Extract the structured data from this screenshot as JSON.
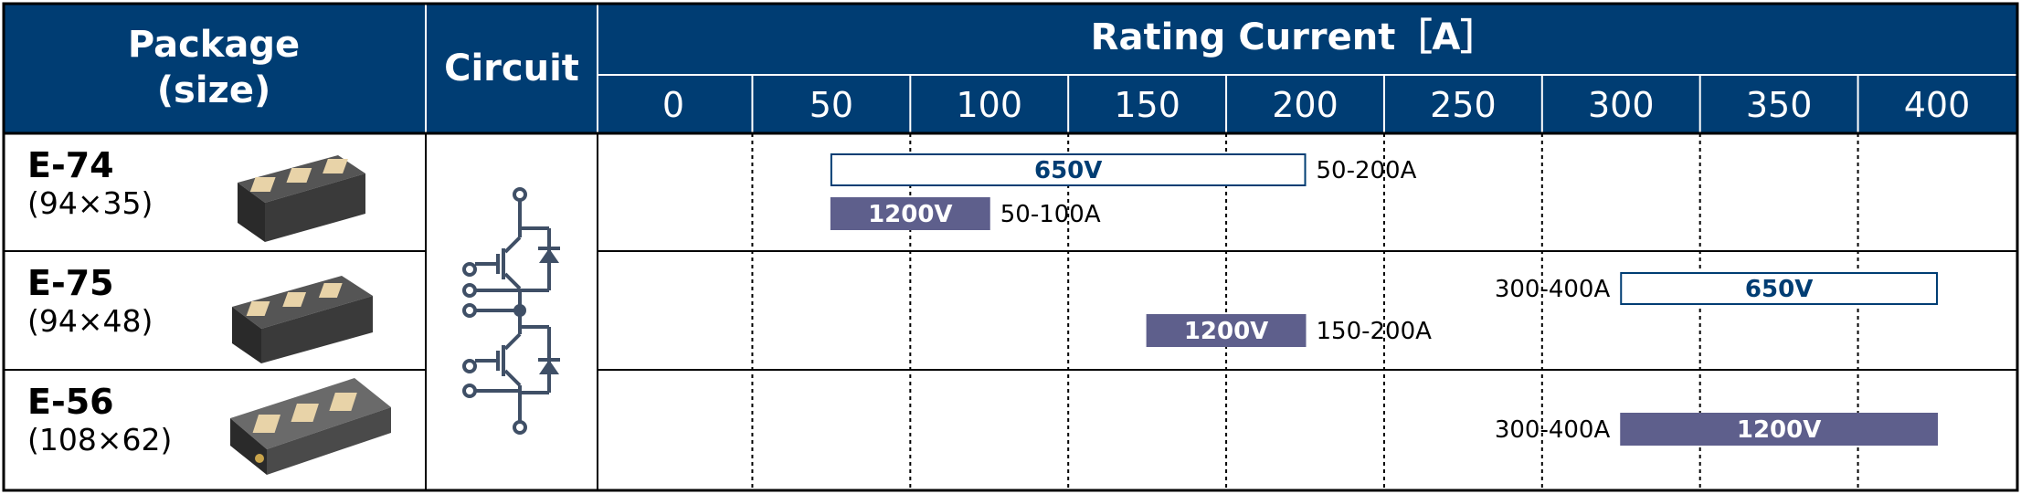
{
  "colors": {
    "header_bg": "#003d73",
    "bar_650v_fill": "#ffffff",
    "bar_650v_border": "#003d73",
    "bar_650v_text": "#003d73",
    "bar_1200v_fill": "#5e5f8c",
    "bar_1200v_text": "#ffffff",
    "circuit_color": "#3f4f66"
  },
  "chart_data": {
    "type": "bar",
    "orientation": "horizontal",
    "title": "Rating Current [A]",
    "header": {
      "package_label": "Package",
      "package_sub": "(size)",
      "circuit_label": "Circuit",
      "axis_title": "Rating Current［A］"
    },
    "xlim": [
      0,
      400
    ],
    "ticks": [
      "0",
      "50",
      "100",
      "150",
      "200",
      "250",
      "300",
      "350",
      "400"
    ],
    "grid": "vertical-dashed",
    "rows": [
      {
        "package": "E-74",
        "size": "(94×35)",
        "picture": "module-e74-icon",
        "bars": [
          {
            "voltage": "650V",
            "start": 50,
            "end": 200,
            "range_label": "50-200A",
            "label_side": "right",
            "style": "outline"
          },
          {
            "voltage": "1200V",
            "start": 50,
            "end": 100,
            "range_label": "50-100A",
            "label_side": "right",
            "style": "filled"
          }
        ]
      },
      {
        "package": "E-75",
        "size": "(94×48)",
        "picture": "module-e75-icon",
        "bars": [
          {
            "voltage": "650V",
            "start": 300,
            "end": 400,
            "range_label": "300-400A",
            "label_side": "left",
            "style": "outline"
          },
          {
            "voltage": "1200V",
            "start": 150,
            "end": 200,
            "range_label": "150-200A",
            "label_side": "right",
            "style": "filled"
          }
        ]
      },
      {
        "package": "E-56",
        "size": "(108×62)",
        "picture": "module-e56-icon",
        "bars": [
          {
            "voltage": "1200V",
            "start": 300,
            "end": 400,
            "range_label": "300-400A",
            "label_side": "left",
            "style": "filled"
          }
        ]
      }
    ],
    "circuit": "half-bridge-igbt-icon"
  }
}
